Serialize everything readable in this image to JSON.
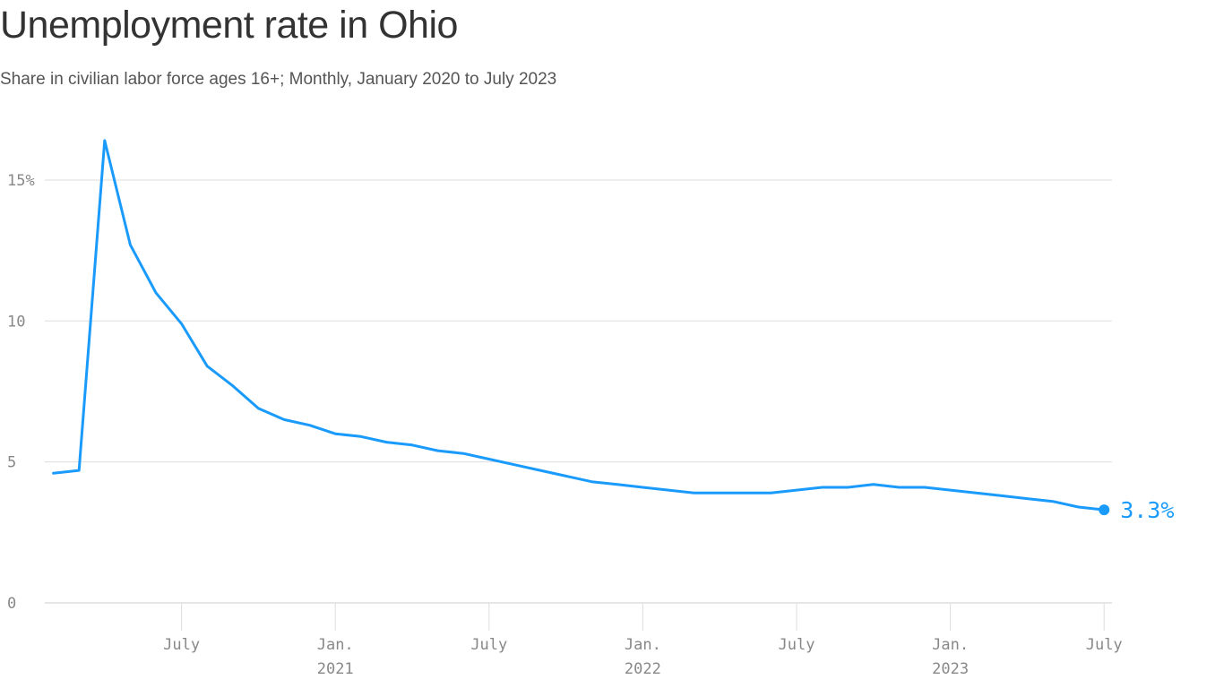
{
  "chart_data": {
    "type": "line",
    "title": "Unemployment rate in Ohio",
    "subtitle": "Share in civilian labor force ages 16+; Monthly, January 2020 to July 2023",
    "xlabel": "",
    "ylabel": "",
    "ylim": [
      0,
      16.5
    ],
    "grid": true,
    "y_ticks": [
      {
        "value": 0,
        "label": "0"
      },
      {
        "value": 5,
        "label": "5"
      },
      {
        "value": 10,
        "label": "10"
      },
      {
        "value": 15,
        "label": "15%"
      }
    ],
    "x_ticks": [
      {
        "date": "2020-07",
        "label": "July",
        "year": ""
      },
      {
        "date": "2021-01",
        "label": "Jan.",
        "year": "2021"
      },
      {
        "date": "2021-07",
        "label": "July",
        "year": ""
      },
      {
        "date": "2022-01",
        "label": "Jan.",
        "year": "2022"
      },
      {
        "date": "2022-07",
        "label": "July",
        "year": ""
      },
      {
        "date": "2023-01",
        "label": "Jan.",
        "year": "2023"
      },
      {
        "date": "2023-07",
        "label": "July",
        "year": ""
      }
    ],
    "x": [
      "2020-02",
      "2020-03",
      "2020-04",
      "2020-05",
      "2020-06",
      "2020-07",
      "2020-08",
      "2020-09",
      "2020-10",
      "2020-11",
      "2020-12",
      "2021-01",
      "2021-02",
      "2021-03",
      "2021-04",
      "2021-05",
      "2021-06",
      "2021-07",
      "2021-08",
      "2021-09",
      "2021-10",
      "2021-11",
      "2021-12",
      "2022-01",
      "2022-02",
      "2022-03",
      "2022-04",
      "2022-05",
      "2022-06",
      "2022-07",
      "2022-08",
      "2022-09",
      "2022-10",
      "2022-11",
      "2022-12",
      "2023-01",
      "2023-02",
      "2023-03",
      "2023-04",
      "2023-05",
      "2023-06",
      "2023-07"
    ],
    "series": [
      {
        "values": [
          4.6,
          4.7,
          16.4,
          12.7,
          11.0,
          9.9,
          8.4,
          7.7,
          6.9,
          6.5,
          6.3,
          6.0,
          5.9,
          5.7,
          5.6,
          5.4,
          5.3,
          5.1,
          4.9,
          4.7,
          4.5,
          4.3,
          4.2,
          4.1,
          4.0,
          3.9,
          3.9,
          3.9,
          3.9,
          4.0,
          4.1,
          4.1,
          4.2,
          4.1,
          4.1,
          4.0,
          3.9,
          3.8,
          3.7,
          3.6,
          3.4,
          3.3
        ]
      }
    ],
    "end_label": "3.3%",
    "color": "#1a9bfc"
  }
}
